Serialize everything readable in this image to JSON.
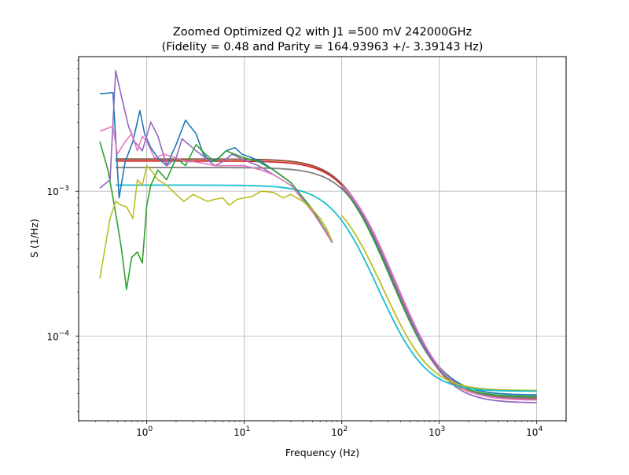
{
  "chart_data": {
    "type": "line",
    "title": "Zoomed Optimized Q2 with J1 =500 mV 242000GHz",
    "subtitle": "(Fidelity = 0.48 and Parity = 164.93963 +/- 3.39143 Hz)",
    "xlabel": "Frequency (Hz)",
    "ylabel": "S (1/Hz)",
    "xscale": "log",
    "yscale": "log",
    "xlim": [
      0.2,
      20000
    ],
    "ylim": [
      2.6e-05,
      0.0085
    ],
    "grid": true,
    "x_ticks": [
      {
        "value": 1,
        "base": "10",
        "exp": "0"
      },
      {
        "value": 10,
        "base": "10",
        "exp": "1"
      },
      {
        "value": 100,
        "base": "10",
        "exp": "2"
      },
      {
        "value": 1000,
        "base": "10",
        "exp": "3"
      },
      {
        "value": 10000,
        "base": "10",
        "exp": "4"
      }
    ],
    "y_ticks": [
      {
        "value": 0.0001,
        "base": "10",
        "exp": "−4"
      },
      {
        "value": 0.001,
        "base": "10",
        "exp": "−3"
      }
    ],
    "noisy_series": [
      {
        "color": "#1f77b4",
        "x": [
          0.33,
          0.45,
          0.52,
          0.6,
          0.72,
          0.85,
          0.95,
          1.1,
          1.3,
          1.6,
          2.0,
          2.5,
          2.8,
          3.2,
          3.8,
          4.5,
          5.5,
          6.5,
          8.0,
          9.5,
          12,
          15,
          20,
          30,
          50,
          80
        ],
        "y": [
          0.0047,
          0.0048,
          0.0009,
          0.0016,
          0.0022,
          0.0036,
          0.0025,
          0.002,
          0.0017,
          0.0015,
          0.0021,
          0.0031,
          0.0028,
          0.0025,
          0.0018,
          0.0016,
          0.0017,
          0.0019,
          0.002,
          0.0018,
          0.0017,
          0.0016,
          0.0014,
          0.00115,
          0.00075,
          0.00045
        ]
      },
      {
        "color": "#2ca02c",
        "x": [
          0.33,
          0.4,
          0.45,
          0.5,
          0.55,
          0.62,
          0.7,
          0.8,
          0.9,
          1.0,
          1.1,
          1.3,
          1.6,
          2.0,
          2.5,
          3.2,
          4.0,
          5.0,
          6.5,
          8.0,
          10,
          14,
          20,
          30,
          50,
          80
        ],
        "y": [
          0.0022,
          0.0014,
          0.0009,
          0.0006,
          0.0004,
          0.00021,
          0.00035,
          0.00038,
          0.00032,
          0.0008,
          0.0011,
          0.0014,
          0.0012,
          0.0017,
          0.0015,
          0.0021,
          0.0018,
          0.0016,
          0.0019,
          0.0018,
          0.0017,
          0.0016,
          0.0014,
          0.00115,
          0.00075,
          0.00045
        ]
      },
      {
        "color": "#9467bd",
        "x": [
          0.33,
          0.42,
          0.48,
          0.55,
          0.65,
          0.75,
          0.9,
          1.1,
          1.3,
          1.6,
          2.0,
          2.3,
          2.7,
          3.2,
          4.0,
          5.0,
          6.0,
          7.5,
          9.0,
          11,
          14,
          20,
          30,
          50,
          80
        ],
        "y": [
          0.00105,
          0.0012,
          0.0068,
          0.0045,
          0.0028,
          0.0022,
          0.0019,
          0.003,
          0.0024,
          0.0015,
          0.0017,
          0.0023,
          0.0021,
          0.0019,
          0.0017,
          0.0015,
          0.0016,
          0.0018,
          0.0017,
          0.0016,
          0.0015,
          0.0013,
          0.0011,
          0.00073,
          0.00044
        ]
      },
      {
        "color": "#e377c2",
        "x": [
          0.33,
          0.45,
          0.5,
          0.6,
          0.7,
          0.8,
          0.9,
          1.0,
          1.2,
          1.5,
          2.0,
          2.5,
          3.0,
          4.0,
          5.0,
          7.0,
          10,
          15,
          20,
          30,
          50,
          80
        ],
        "y": [
          0.0026,
          0.0028,
          0.0018,
          0.0022,
          0.0025,
          0.0019,
          0.0024,
          0.0022,
          0.0017,
          0.0018,
          0.0017,
          0.0016,
          0.0016,
          0.00155,
          0.0015,
          0.0015,
          0.0015,
          0.0014,
          0.0013,
          0.0011,
          0.00072,
          0.00045
        ]
      },
      {
        "color": "#bcbd22",
        "x": [
          0.33,
          0.42,
          0.48,
          0.55,
          0.62,
          0.72,
          0.8,
          0.9,
          1.0,
          1.1,
          1.3,
          1.6,
          2.0,
          2.4,
          3.0,
          3.5,
          4.2,
          5.0,
          6.0,
          7.0,
          8.5,
          10,
          12,
          15,
          20,
          25,
          30,
          40,
          50,
          60,
          70,
          80
        ],
        "y": [
          0.00025,
          0.00065,
          0.00085,
          0.0008,
          0.00078,
          0.00065,
          0.0012,
          0.0011,
          0.0015,
          0.0014,
          0.0012,
          0.0011,
          0.00095,
          0.00085,
          0.00095,
          0.0009,
          0.00085,
          0.00088,
          0.0009,
          0.0008,
          0.00088,
          0.0009,
          0.00092,
          0.001,
          0.00098,
          0.0009,
          0.00095,
          0.00085,
          0.00075,
          0.00065,
          0.00055,
          0.00045
        ]
      }
    ],
    "fit_series": [
      {
        "color": "#ff7f0e",
        "x_start": 0.48,
        "S0": 0.00163,
        "fc": 135,
        "floor": 3.65e-05
      },
      {
        "color": "#d62728",
        "x_start": 0.48,
        "S0": 0.00158,
        "fc": 140,
        "floor": 3.65e-05
      },
      {
        "color": "#8c564b",
        "x_start": 0.48,
        "S0": 0.00163,
        "fc": 138,
        "floor": 3.75e-05
      },
      {
        "color": "#7f7f7f",
        "x_start": 0.48,
        "S0": 0.00142,
        "fc": 150,
        "floor": 3.7e-05
      },
      {
        "color": "#1f77b4",
        "x_start": 100,
        "S0": 0.00155,
        "fc": 140,
        "floor": 3.9e-05
      },
      {
        "color": "#2ca02c",
        "x_start": 100,
        "S0": 0.00155,
        "fc": 135,
        "floor": 3.8e-05
      },
      {
        "color": "#9467bd",
        "x_start": 100,
        "S0": 0.0015,
        "fc": 145,
        "floor": 3.45e-05
      },
      {
        "color": "#e377c2",
        "x_start": 100,
        "S0": 0.0015,
        "fc": 150,
        "floor": 3.6e-05
      },
      {
        "color": "#bcbd22",
        "x_start": 100,
        "S0": 0.00103,
        "fc": 125,
        "floor": 4.2e-05
      },
      {
        "color": "#17becf",
        "x_start": 0.48,
        "S0": 0.00106,
        "fc": 110,
        "floor": 4.15e-05
      }
    ]
  }
}
